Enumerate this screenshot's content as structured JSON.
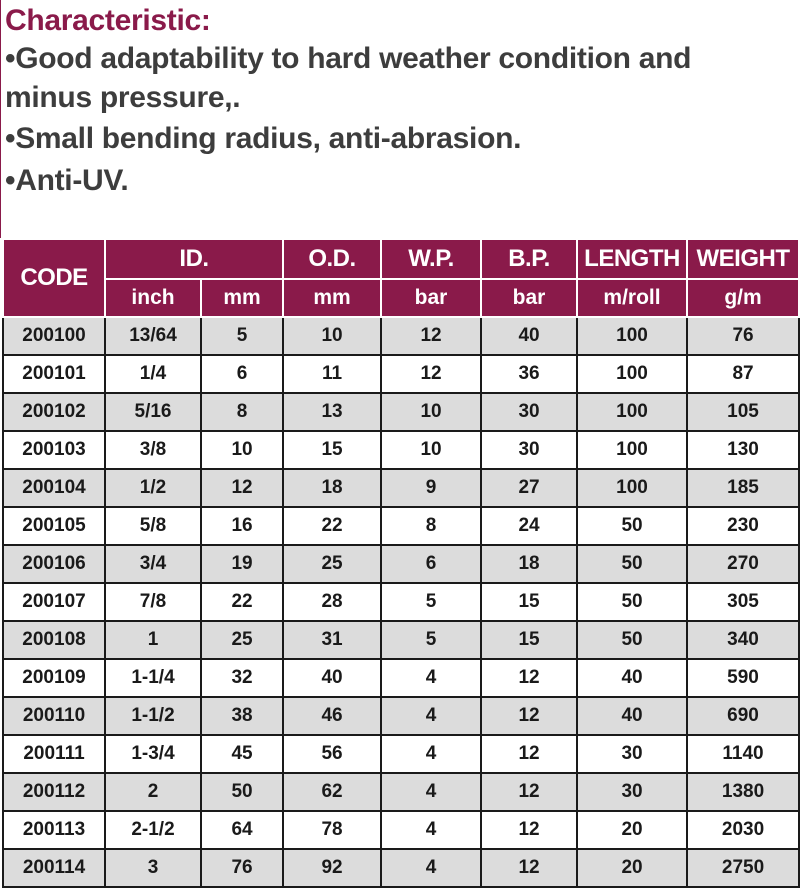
{
  "characteristic": {
    "title": "Characteristic:",
    "lines": [
      "•Good adaptability to hard weather condition and",
      "minus pressure,.",
      "•Small bending radius, anti-abrasion.",
      "•Anti-UV."
    ]
  },
  "table": {
    "headers": {
      "code": "CODE",
      "id": "ID.",
      "od": "O.D.",
      "wp": "W.P.",
      "bp": "B.P.",
      "length": "LENGTH",
      "weight": "WEIGHT"
    },
    "units": [
      "inch",
      "mm",
      "mm",
      "bar",
      "bar",
      "m/roll",
      "g/m"
    ],
    "rows": [
      [
        "200100",
        "13/64",
        "5",
        "10",
        "12",
        "40",
        "100",
        "76"
      ],
      [
        "200101",
        "1/4",
        "6",
        "11",
        "12",
        "36",
        "100",
        "87"
      ],
      [
        "200102",
        "5/16",
        "8",
        "13",
        "10",
        "30",
        "100",
        "105"
      ],
      [
        "200103",
        "3/8",
        "10",
        "15",
        "10",
        "30",
        "100",
        "130"
      ],
      [
        "200104",
        "1/2",
        "12",
        "18",
        "9",
        "27",
        "100",
        "185"
      ],
      [
        "200105",
        "5/8",
        "16",
        "22",
        "8",
        "24",
        "50",
        "230"
      ],
      [
        "200106",
        "3/4",
        "19",
        "25",
        "6",
        "18",
        "50",
        "270"
      ],
      [
        "200107",
        "7/8",
        "22",
        "28",
        "5",
        "15",
        "50",
        "305"
      ],
      [
        "200108",
        "1",
        "25",
        "31",
        "5",
        "15",
        "50",
        "340"
      ],
      [
        "200109",
        "1-1/4",
        "32",
        "40",
        "4",
        "12",
        "40",
        "590"
      ],
      [
        "200110",
        "1-1/2",
        "38",
        "46",
        "4",
        "12",
        "40",
        "690"
      ],
      [
        "200111",
        "1-3/4",
        "45",
        "56",
        "4",
        "12",
        "30",
        "1140"
      ],
      [
        "200112",
        "2",
        "50",
        "62",
        "4",
        "12",
        "30",
        "1380"
      ],
      [
        "200113",
        "2-1/2",
        "64",
        "78",
        "4",
        "12",
        "20",
        "2030"
      ],
      [
        "200114",
        "3",
        "76",
        "92",
        "4",
        "12",
        "20",
        "2750"
      ]
    ]
  },
  "colors": {
    "header_bg": "#8a1a4a",
    "title_text": "#8a1a4a",
    "body_text": "#3d3d3d",
    "alt_row_bg": "#dcdcdc"
  }
}
